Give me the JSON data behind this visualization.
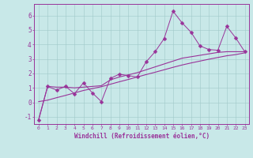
{
  "xlabel": "Windchill (Refroidissement éolien,°C)",
  "bg_color": "#c8e8e8",
  "line_color": "#993399",
  "x_data": [
    0,
    1,
    2,
    3,
    4,
    5,
    6,
    7,
    8,
    9,
    10,
    11,
    12,
    13,
    14,
    15,
    16,
    17,
    18,
    19,
    20,
    21,
    22,
    23
  ],
  "y_jagged": [
    -1.2,
    1.1,
    0.85,
    1.1,
    0.6,
    1.35,
    0.65,
    0.05,
    1.65,
    1.95,
    1.85,
    1.75,
    2.8,
    3.5,
    4.4,
    6.3,
    5.5,
    4.85,
    3.9,
    3.65,
    3.6,
    5.25,
    4.45,
    3.5
  ],
  "y_smooth1": [
    -1.2,
    1.1,
    1.05,
    1.05,
    1.0,
    1.05,
    1.1,
    1.15,
    1.55,
    1.75,
    1.9,
    2.05,
    2.25,
    2.45,
    2.65,
    2.85,
    3.05,
    3.15,
    3.25,
    3.35,
    3.45,
    3.5,
    3.5,
    3.5
  ],
  "y_smooth2": [
    0.05,
    0.15,
    0.32,
    0.48,
    0.65,
    0.82,
    0.95,
    1.08,
    1.25,
    1.42,
    1.58,
    1.75,
    1.92,
    2.08,
    2.25,
    2.42,
    2.58,
    2.72,
    2.85,
    2.98,
    3.1,
    3.22,
    3.3,
    3.42
  ],
  "ylim": [
    -1.5,
    6.8
  ],
  "xlim": [
    -0.5,
    23.5
  ],
  "yticks": [
    -1,
    0,
    1,
    2,
    3,
    4,
    5,
    6
  ],
  "xticks": [
    0,
    1,
    2,
    3,
    4,
    5,
    6,
    7,
    8,
    9,
    10,
    11,
    12,
    13,
    14,
    15,
    16,
    17,
    18,
    19,
    20,
    21,
    22,
    23
  ],
  "grid_color": "#a0c8c8",
  "axis_color": "#993399",
  "tick_color": "#993399",
  "label_color": "#993399",
  "markersize": 2.5
}
